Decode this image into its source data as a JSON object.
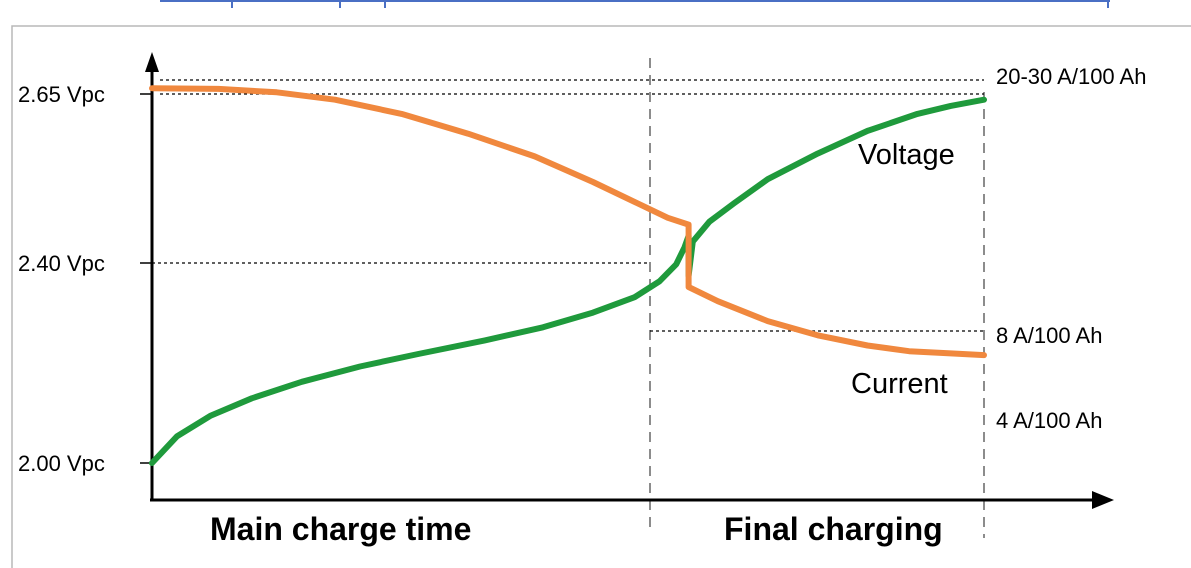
{
  "chart_data": {
    "type": "line",
    "title": "",
    "xlabel": "",
    "ylabel": "",
    "ylim": [
      2.0,
      2.65
    ],
    "y_ticks": [
      {
        "value": 2.65,
        "label": "2.65 Vpc"
      },
      {
        "value": 2.4,
        "label": "2.40 Vpc"
      },
      {
        "value": 2.0,
        "label": "2.00 Vpc"
      }
    ],
    "phases": [
      {
        "label": "Main charge time"
      },
      {
        "label": "Final charging"
      }
    ],
    "current_labels": [
      {
        "label": "20-30 A/100 Ah"
      },
      {
        "label": "8 A/100 Ah"
      },
      {
        "label": "4 A/100 Ah"
      }
    ],
    "series": [
      {
        "name": "Voltage",
        "color": "#1f9a3c",
        "points": [
          [
            0.0,
            2.0
          ],
          [
            0.03,
            2.047
          ],
          [
            0.07,
            2.083
          ],
          [
            0.12,
            2.114
          ],
          [
            0.18,
            2.143
          ],
          [
            0.25,
            2.17
          ],
          [
            0.32,
            2.192
          ],
          [
            0.4,
            2.216
          ],
          [
            0.47,
            2.239
          ],
          [
            0.53,
            2.265
          ],
          [
            0.58,
            2.292
          ],
          [
            0.61,
            2.32
          ],
          [
            0.63,
            2.35
          ],
          [
            0.64,
            2.38
          ],
          [
            0.645,
            2.4
          ],
          [
            0.645,
            2.33
          ],
          [
            0.65,
            2.39
          ],
          [
            0.67,
            2.425
          ],
          [
            0.7,
            2.458
          ],
          [
            0.74,
            2.5
          ],
          [
            0.8,
            2.545
          ],
          [
            0.86,
            2.585
          ],
          [
            0.92,
            2.615
          ],
          [
            0.96,
            2.629
          ],
          [
            1.0,
            2.64
          ]
        ]
      },
      {
        "name": "Current",
        "color": "#f0883e",
        "points": [
          [
            0.0,
            2.66
          ],
          [
            0.08,
            2.659
          ],
          [
            0.15,
            2.653
          ],
          [
            0.22,
            2.64
          ],
          [
            0.3,
            2.615
          ],
          [
            0.38,
            2.58
          ],
          [
            0.46,
            2.54
          ],
          [
            0.53,
            2.495
          ],
          [
            0.58,
            2.46
          ],
          [
            0.62,
            2.432
          ],
          [
            0.645,
            2.42
          ],
          [
            0.645,
            2.31
          ],
          [
            0.68,
            2.285
          ],
          [
            0.74,
            2.25
          ],
          [
            0.8,
            2.225
          ],
          [
            0.86,
            2.207
          ],
          [
            0.91,
            2.197
          ],
          [
            0.96,
            2.193
          ],
          [
            1.0,
            2.19
          ]
        ]
      }
    ],
    "legend": "none"
  }
}
